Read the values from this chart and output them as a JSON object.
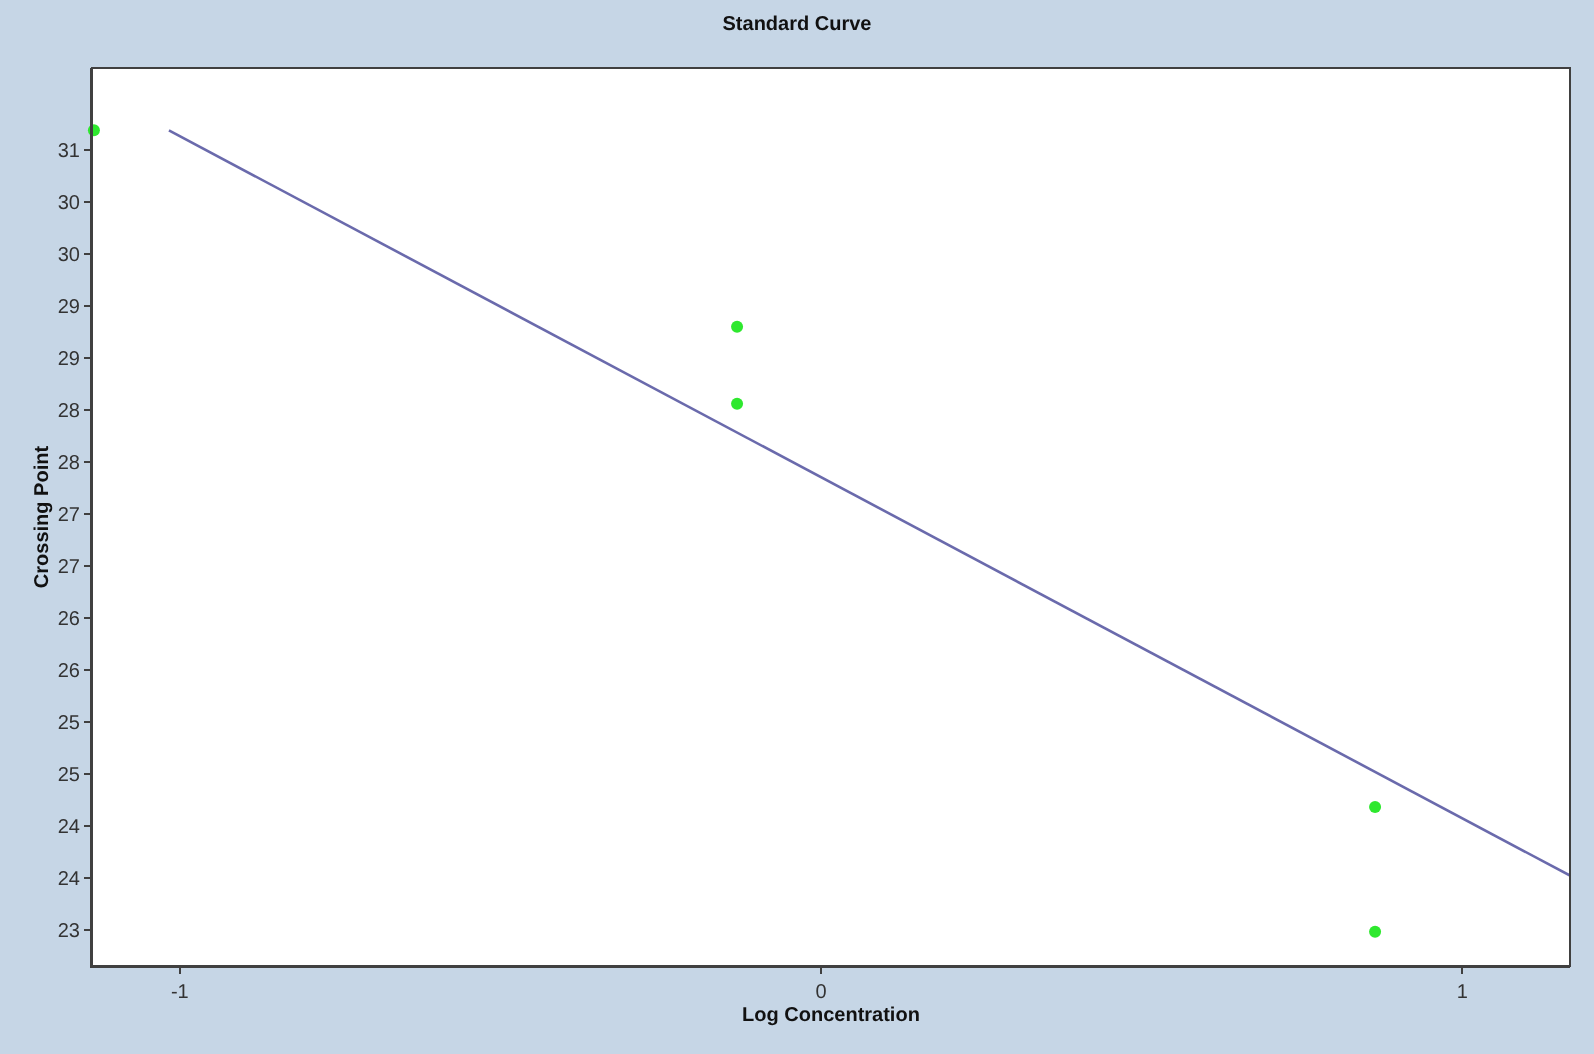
{
  "chart_data": {
    "type": "scatter",
    "title": "Standard Curve",
    "xlabel": "Log Concentration",
    "ylabel": "Crossing Point",
    "series": [
      {
        "color": "#2ee82e",
        "x": [
          -1.134,
          -0.131,
          -0.131,
          0.864,
          0.864
        ],
        "values": [
          30.69,
          28.8,
          28.06,
          24.18,
          22.98
        ],
        "marker": "circle"
      },
      {
        "type": "line",
        "color": "#6a6aac",
        "x": [
          -1.017,
          1.168
        ],
        "values": [
          30.69,
          23.52
        ],
        "marker": "none",
        "line_style": "solid"
      }
    ],
    "xlim": [
      -1.137,
      1.168
    ],
    "xticks": [
      -1,
      0,
      1
    ],
    "ylim": [
      22.65,
      31.29
    ],
    "yticks": [
      {
        "value": 23,
        "label": "23"
      },
      {
        "value": 23.5,
        "label": "24"
      },
      {
        "value": 24,
        "label": "24"
      },
      {
        "value": 24.5,
        "label": "25"
      },
      {
        "value": 25,
        "label": "25"
      },
      {
        "value": 25.5,
        "label": "26"
      },
      {
        "value": 26,
        "label": "26"
      },
      {
        "value": 26.5,
        "label": "27"
      },
      {
        "value": 27,
        "label": "27"
      },
      {
        "value": 27.5,
        "label": "28"
      },
      {
        "value": 28,
        "label": "28"
      },
      {
        "value": 28.5,
        "label": "29"
      },
      {
        "value": 29,
        "label": "29"
      },
      {
        "value": 29.5,
        "label": "30"
      },
      {
        "value": 30,
        "label": "30"
      },
      {
        "value": 30.5,
        "label": "31"
      }
    ]
  }
}
